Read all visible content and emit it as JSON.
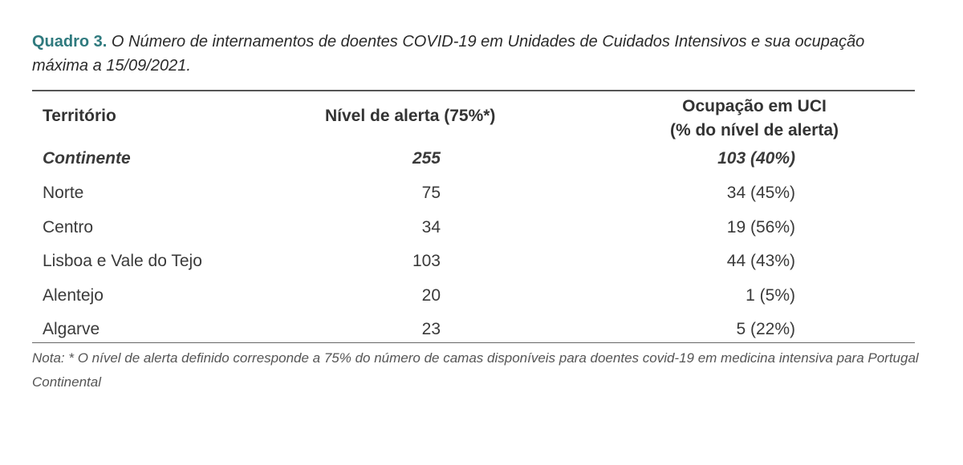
{
  "caption": {
    "label": "Quadro 3.",
    "text": "O Número de internamentos de doentes COVID-19 em Unidades de Cuidados Intensivos e sua ocupação máxima a 15/09/2021."
  },
  "table": {
    "headers": {
      "territory": "Território",
      "alert_level": "Nível de alerta (75%*)",
      "occupancy_line1": "Ocupação em UCI",
      "occupancy_line2": "(% do nível de alerta)"
    },
    "rows": [
      {
        "territory": "Continente",
        "alert_level": "255",
        "occupancy": "103 (40%)"
      },
      {
        "territory": "Norte",
        "alert_level": "75",
        "occupancy": "34 (45%)"
      },
      {
        "territory": "Centro",
        "alert_level": "34",
        "occupancy": "19 (56%)"
      },
      {
        "territory": "Lisboa e Vale do Tejo",
        "alert_level": "103",
        "occupancy": "44 (43%)"
      },
      {
        "territory": "Alentejo",
        "alert_level": "20",
        "occupancy": "1 (5%)"
      },
      {
        "territory": "Algarve",
        "alert_level": "23",
        "occupancy": "5 (22%)"
      }
    ]
  },
  "note": "Nota: * O nível de alerta definido corresponde a 75% do número de camas disponíveis para doentes covid-19 em medicina intensiva para Portugal Continental",
  "colors": {
    "caption_label": "#2f7a7e",
    "text": "#333333",
    "rule": "#555555"
  }
}
